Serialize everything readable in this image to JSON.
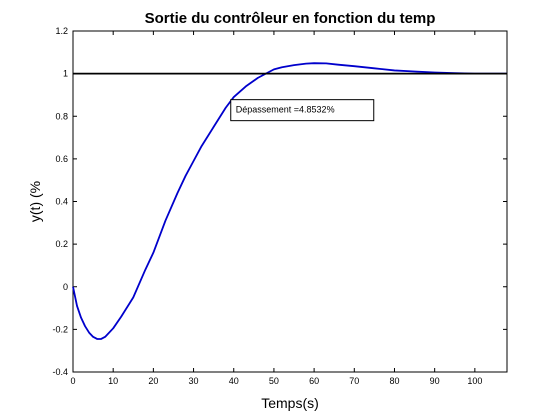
{
  "chart_data": {
    "type": "line",
    "title": "Sortie du contrôleur en fonction du temp",
    "xlabel": "Temps(s)",
    "ylabel": "y(t) (%",
    "xlim": [
      0,
      108
    ],
    "ylim": [
      -0.4,
      1.2
    ],
    "x_ticks": [
      0,
      10,
      20,
      30,
      40,
      50,
      60,
      70,
      80,
      90,
      100
    ],
    "y_ticks": [
      -0.4,
      -0.2,
      0,
      0.2,
      0.4,
      0.6,
      0.8,
      1,
      1.2
    ],
    "x_tick_labels": [
      "0",
      "10",
      "20",
      "30",
      "40",
      "50",
      "60",
      "70",
      "80",
      "90",
      "100"
    ],
    "y_tick_labels": [
      "-0.4",
      "-0.2",
      "0",
      "0.2",
      "0.4",
      "0.6",
      "0.8",
      "1",
      "1.2"
    ],
    "grid": false,
    "series": [
      {
        "color": "#0000cc",
        "x": [
          0,
          1,
          2,
          3,
          4,
          5,
          6,
          7,
          8,
          10,
          12,
          15,
          18,
          20,
          23,
          26,
          28,
          30,
          32,
          35,
          38,
          40,
          43,
          46,
          48,
          50,
          52,
          55,
          58,
          60,
          63,
          66,
          70,
          75,
          80,
          85,
          90,
          95,
          100,
          105,
          108
        ],
        "y": [
          0,
          -0.09,
          -0.145,
          -0.185,
          -0.215,
          -0.235,
          -0.245,
          -0.245,
          -0.235,
          -0.195,
          -0.14,
          -0.05,
          0.08,
          0.16,
          0.31,
          0.44,
          0.52,
          0.59,
          0.66,
          0.75,
          0.84,
          0.89,
          0.94,
          0.98,
          1.0,
          1.02,
          1.03,
          1.04,
          1.047,
          1.049,
          1.048,
          1.042,
          1.035,
          1.025,
          1.015,
          1.01,
          1.005,
          1.002,
          1.0,
          1.0,
          1.0
        ]
      },
      {
        "color": "#000000",
        "x": [
          0,
          108
        ],
        "y": [
          1,
          1
        ]
      }
    ],
    "annotation": {
      "text": "Dépassement =4.8532%",
      "x": 40.5,
      "y": 0.845
    }
  }
}
